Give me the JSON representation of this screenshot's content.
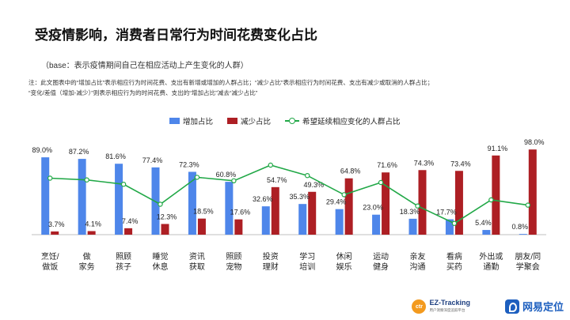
{
  "header": {
    "title": "受疫情影响，消费者日常行为时间花费变化占比",
    "subtitle": "（base：表示疫情期间自己在相应活动上产生变化的人群）",
    "note_line1": "注：此文图表中的“增加占比”表示相应行为时间花费、支出有新增或增加的人群占比；“减少占比”表示相应行为时间花费、支出有减少或取消的人群占比；",
    "note_line2": "“变化/差值（增加-减少）”则表示相应行为的时间花费、支出的“增加占比”减去“减少占比”"
  },
  "colors": {
    "increase": "#4e86ea",
    "decrease": "#ad1f24",
    "line": "#21a847",
    "axis": "#bfbfbf"
  },
  "chart_data": {
    "type": "bar",
    "categories": [
      "烹饪/\n做饭",
      "做\n家务",
      "照顾\n孩子",
      "睡觉\n休息",
      "资讯\n获取",
      "照顾\n宠物",
      "投资\n理财",
      "学习\n培训",
      "休闲\n娱乐",
      "运动\n健身",
      "亲友\n沟通",
      "看病\n买药",
      "外出或\n通勤",
      "朋友/同\n学聚会"
    ],
    "series": [
      {
        "name": "增加占比",
        "kind": "bar",
        "values": [
          89.0,
          87.2,
          81.6,
          77.4,
          72.3,
          60.8,
          32.6,
          35.3,
          29.4,
          23.0,
          18.3,
          17.7,
          5.4,
          0.8
        ]
      },
      {
        "name": "减少占比",
        "kind": "bar",
        "values": [
          3.7,
          4.1,
          7.4,
          12.3,
          18.5,
          17.6,
          54.7,
          49.3,
          64.8,
          71.6,
          74.3,
          73.4,
          91.1,
          98.0
        ]
      },
      {
        "name": "希望延续相应变化的人群占比",
        "kind": "line",
        "values": [
          65,
          63,
          58,
          35,
          66,
          62,
          80,
          68,
          46,
          60,
          33,
          13,
          40,
          34
        ]
      }
    ],
    "ylim": [
      0,
      100
    ],
    "increase_labels": [
      "89.0%",
      "87.2%",
      "81.6%",
      "77.4%",
      "72.3%",
      "60.8%",
      "32.6%",
      "35.3%",
      "29.4%",
      "23.0%",
      "18.3%",
      "17.7%",
      "5.4%",
      "0.8%"
    ],
    "decrease_labels": [
      "3.7%",
      "4.1%",
      "7.4%",
      "12.3%",
      "18.5%",
      "17.6%",
      "54.7%",
      "49.3%",
      "64.8%",
      "71.6%",
      "74.3%",
      "73.4%",
      "91.1%",
      "98.0%"
    ],
    "legend": [
      "增加占比",
      "减少占比",
      "希望延续相应变化的人群占比"
    ]
  },
  "footer": {
    "ctr_badge": "ctr",
    "ez_title": "EZ-Tracking",
    "ez_sub": "用户洞察深度追踪平台",
    "brand": "网易定位"
  }
}
